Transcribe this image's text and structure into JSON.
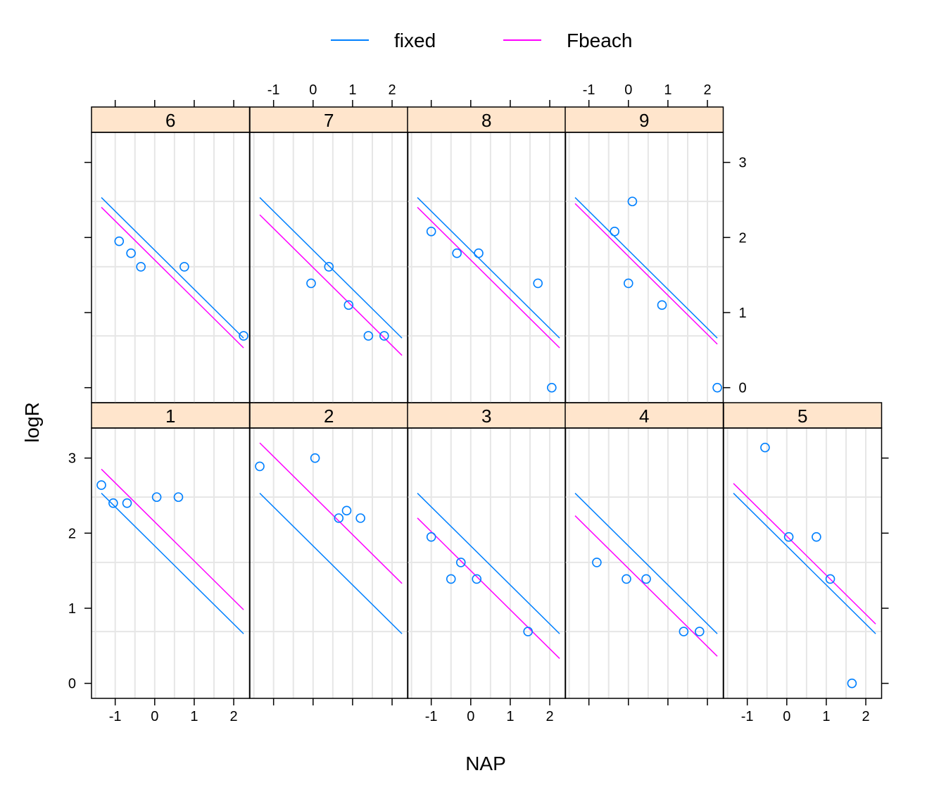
{
  "chart_data": {
    "type": "scatter",
    "xlabel": "NAP",
    "ylabel": "logR",
    "xlim": [
      -1.6,
      2.4
    ],
    "ylim": [
      -0.2,
      3.4
    ],
    "x_ticks": [
      -1,
      0,
      1,
      2
    ],
    "y_ticks": [
      0,
      1,
      2,
      3
    ],
    "grid": true,
    "legend": {
      "placement": "top",
      "items": [
        {
          "label": "fixed",
          "color": "#0080ff"
        },
        {
          "label": "Fbeach",
          "color": "#ff00ff"
        }
      ]
    },
    "colors": {
      "points": "#0080ff",
      "strip": "#ffe5cc",
      "fixed": "#0080ff",
      "beach": "#ff00ff"
    },
    "line_x_range": [
      -1.35,
      2.25
    ],
    "fixed_line": {
      "intercept": 1.83,
      "slope": -0.52
    },
    "panels": [
      {
        "label": "1",
        "beach_intercept": 2.15,
        "points": [
          [
            -1.35,
            2.64
          ],
          [
            -1.05,
            2.4
          ],
          [
            -0.7,
            2.4
          ],
          [
            0.05,
            2.48
          ],
          [
            0.6,
            2.48
          ]
        ]
      },
      {
        "label": "2",
        "beach_intercept": 2.5,
        "points": [
          [
            -1.35,
            2.89
          ],
          [
            0.05,
            3.0
          ],
          [
            0.65,
            2.2
          ],
          [
            0.85,
            2.3
          ],
          [
            1.2,
            2.2
          ]
        ]
      },
      {
        "label": "3",
        "beach_intercept": 1.5,
        "points": [
          [
            -1.0,
            1.95
          ],
          [
            -0.5,
            1.39
          ],
          [
            -0.25,
            1.61
          ],
          [
            0.15,
            1.39
          ],
          [
            1.45,
            0.69
          ]
        ]
      },
      {
        "label": "4",
        "beach_intercept": 1.53,
        "points": [
          [
            -0.8,
            1.61
          ],
          [
            -0.05,
            1.39
          ],
          [
            0.45,
            1.39
          ],
          [
            1.4,
            0.69
          ],
          [
            1.8,
            0.69
          ]
        ]
      },
      {
        "label": "5",
        "beach_intercept": 1.96,
        "points": [
          [
            -0.55,
            3.14
          ],
          [
            0.05,
            1.95
          ],
          [
            0.75,
            1.95
          ],
          [
            1.1,
            1.39
          ],
          [
            1.65,
            0.0
          ]
        ]
      },
      {
        "label": "6",
        "beach_intercept": 1.7,
        "points": [
          [
            -0.9,
            1.95
          ],
          [
            -0.6,
            1.79
          ],
          [
            -0.35,
            1.61
          ],
          [
            0.75,
            1.61
          ],
          [
            2.25,
            0.69
          ]
        ]
      },
      {
        "label": "7",
        "beach_intercept": 1.6,
        "points": [
          [
            -0.05,
            1.39
          ],
          [
            0.4,
            1.61
          ],
          [
            0.9,
            1.1
          ],
          [
            1.4,
            0.69
          ],
          [
            1.8,
            0.69
          ]
        ]
      },
      {
        "label": "8",
        "beach_intercept": 1.7,
        "points": [
          [
            -1.0,
            2.08
          ],
          [
            -0.35,
            1.79
          ],
          [
            0.2,
            1.79
          ],
          [
            1.7,
            1.39
          ],
          [
            2.05,
            0.0
          ]
        ]
      },
      {
        "label": "9",
        "beach_intercept": 1.75,
        "points": [
          [
            -0.35,
            2.08
          ],
          [
            0.1,
            2.48
          ],
          [
            0.0,
            1.39
          ],
          [
            0.85,
            1.1
          ],
          [
            2.25,
            0.0
          ]
        ]
      }
    ]
  }
}
